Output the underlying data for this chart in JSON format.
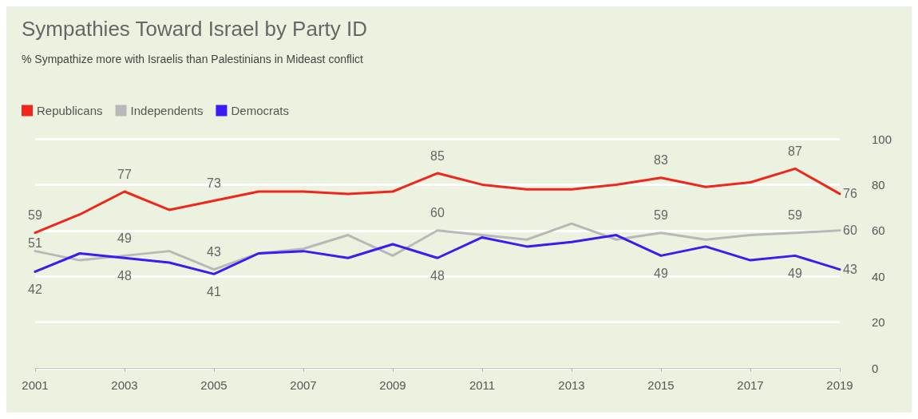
{
  "chart_data": {
    "type": "line",
    "title": "Sympathies Toward Israel by Party ID",
    "subtitle": "% Sympathize more with Israelis than Palestinians in Mideast conflict",
    "x": [
      2001,
      2002,
      2003,
      2004,
      2005,
      2006,
      2007,
      2008,
      2009,
      2010,
      2011,
      2012,
      2013,
      2014,
      2015,
      2016,
      2017,
      2018,
      2019
    ],
    "series": [
      {
        "name": "Republicans",
        "color": "#f0261c",
        "values": [
          59,
          67,
          77,
          69,
          73,
          77,
          77,
          76,
          77,
          85,
          80,
          78,
          78,
          80,
          83,
          79,
          81,
          87,
          76
        ],
        "value_labels": [
          "59",
          null,
          "77",
          null,
          "73",
          null,
          null,
          null,
          null,
          "85",
          null,
          null,
          null,
          null,
          "83",
          null,
          null,
          "87",
          "76"
        ]
      },
      {
        "name": "Independents",
        "color": "#b8b8b8",
        "values": [
          51,
          47,
          49,
          51,
          43,
          50,
          52,
          58,
          49,
          60,
          58,
          56,
          63,
          56,
          59,
          56,
          58,
          59,
          60
        ],
        "value_labels": [
          "51",
          null,
          "49",
          null,
          "43",
          null,
          null,
          null,
          null,
          "60",
          null,
          null,
          null,
          null,
          "59",
          null,
          null,
          "59",
          "60"
        ]
      },
      {
        "name": "Democrats",
        "color": "#3a1af5",
        "values": [
          42,
          50,
          48,
          46,
          41,
          50,
          51,
          48,
          54,
          48,
          57,
          53,
          55,
          58,
          49,
          53,
          47,
          49,
          43
        ],
        "value_labels": [
          "42",
          null,
          "48",
          null,
          "41",
          null,
          null,
          null,
          null,
          "48",
          null,
          null,
          null,
          null,
          "49",
          null,
          null,
          "49",
          "43"
        ]
      }
    ],
    "xlim": [
      2001,
      2019
    ],
    "xticks": [
      2001,
      2003,
      2005,
      2007,
      2009,
      2011,
      2013,
      2015,
      2017,
      2019
    ],
    "ylim": [
      0,
      100
    ],
    "yticks": [
      0,
      20,
      40,
      60,
      80,
      100
    ],
    "grid": "y",
    "legend": "top left",
    "marker": "none",
    "line_style": "solid"
  }
}
